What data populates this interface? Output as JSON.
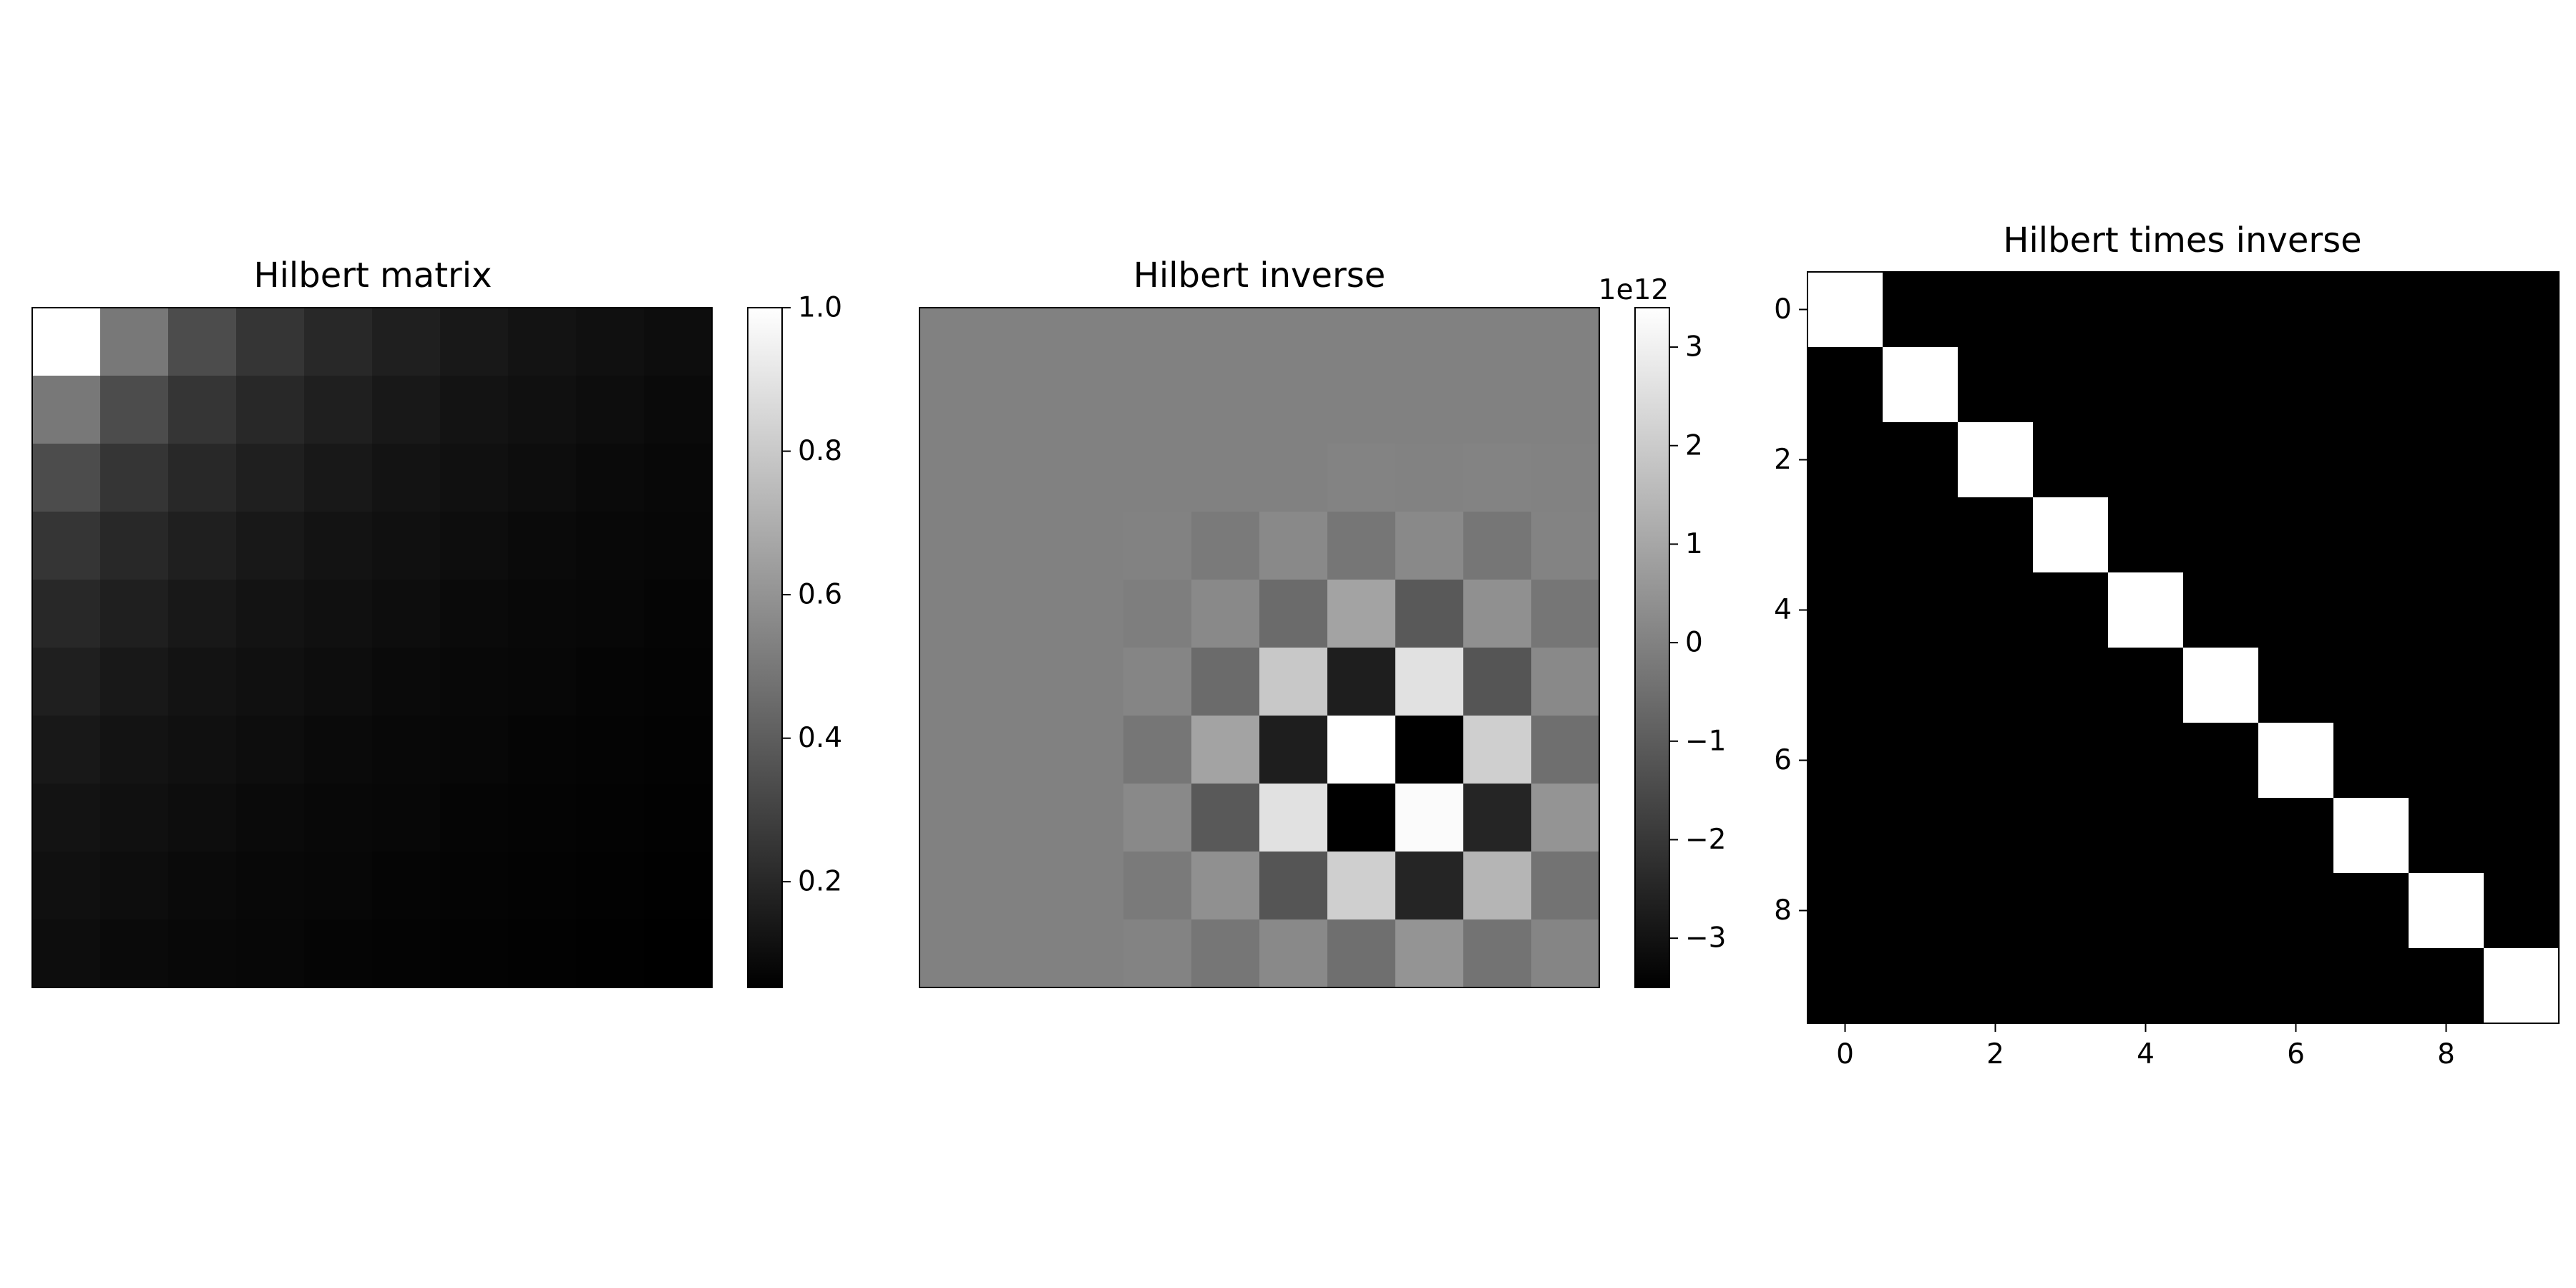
{
  "chart_data": [
    {
      "type": "heatmap",
      "title": "Hilbert matrix",
      "n": 10,
      "formula": "1/(i+j+1)",
      "colormap": "gray",
      "vmin": 0.0526,
      "vmax": 1.0,
      "axes_visible": false,
      "colorbar": {
        "ticks": [
          {
            "value": 0.2,
            "label": "0.2"
          },
          {
            "value": 0.4,
            "label": "0.4"
          },
          {
            "value": 0.6,
            "label": "0.6"
          },
          {
            "value": 0.8,
            "label": "0.8"
          },
          {
            "value": 1.0,
            "label": "1.0"
          }
        ]
      }
    },
    {
      "type": "heatmap",
      "title": "Hilbert inverse",
      "n": 10,
      "colormap": "gray",
      "vmin": -3.5,
      "vmax": 3.4,
      "values": [
        [
          0,
          0,
          0,
          0,
          0,
          0,
          0,
          0,
          0,
          0
        ],
        [
          0,
          0,
          0,
          0,
          0,
          0,
          0,
          0,
          0,
          0
        ],
        [
          0,
          0,
          0,
          0,
          0,
          0,
          0.05,
          0.02,
          0.05,
          0.02
        ],
        [
          0,
          0,
          0,
          0.02,
          -0.2,
          0.2,
          -0.3,
          0.2,
          -0.3,
          0.05
        ],
        [
          0,
          0,
          0,
          -0.1,
          0.2,
          -0.6,
          0.9,
          -1.1,
          0.4,
          -0.3
        ],
        [
          0,
          0,
          0,
          0.1,
          -0.6,
          1.9,
          -2.7,
          2.6,
          -1.2,
          0.2
        ],
        [
          0,
          0,
          0,
          -0.3,
          0.9,
          -2.7,
          3.4,
          -3.5,
          2.1,
          -0.5
        ],
        [
          0,
          0,
          0,
          0.2,
          -1.1,
          2.6,
          -3.5,
          3.3,
          -2.5,
          0.5
        ],
        [
          0,
          0,
          0,
          -0.2,
          0.4,
          -1.2,
          2.1,
          -2.5,
          1.4,
          -0.4
        ],
        [
          0,
          0,
          0,
          0.05,
          -0.3,
          0.2,
          -0.5,
          0.5,
          -0.4,
          0.1
        ]
      ],
      "axes_visible": false,
      "colorbar": {
        "offset_label": "1e12",
        "ticks": [
          {
            "value": -3,
            "label": "−3"
          },
          {
            "value": -2,
            "label": "−2"
          },
          {
            "value": -1,
            "label": "−1"
          },
          {
            "value": 0,
            "label": "0"
          },
          {
            "value": 1,
            "label": "1"
          },
          {
            "value": 2,
            "label": "2"
          },
          {
            "value": 3,
            "label": "3"
          }
        ]
      }
    },
    {
      "type": "heatmap",
      "title": "Hilbert times inverse",
      "n": 10,
      "colormap": "gray",
      "vmin": 0,
      "vmax": 1,
      "pattern": "identity",
      "x_ticks": [
        {
          "value": 0,
          "label": "0"
        },
        {
          "value": 2,
          "label": "2"
        },
        {
          "value": 4,
          "label": "4"
        },
        {
          "value": 6,
          "label": "6"
        },
        {
          "value": 8,
          "label": "8"
        }
      ],
      "y_ticks": [
        {
          "value": 0,
          "label": "0"
        },
        {
          "value": 2,
          "label": "2"
        },
        {
          "value": 4,
          "label": "4"
        },
        {
          "value": 6,
          "label": "6"
        },
        {
          "value": 8,
          "label": "8"
        }
      ]
    }
  ]
}
